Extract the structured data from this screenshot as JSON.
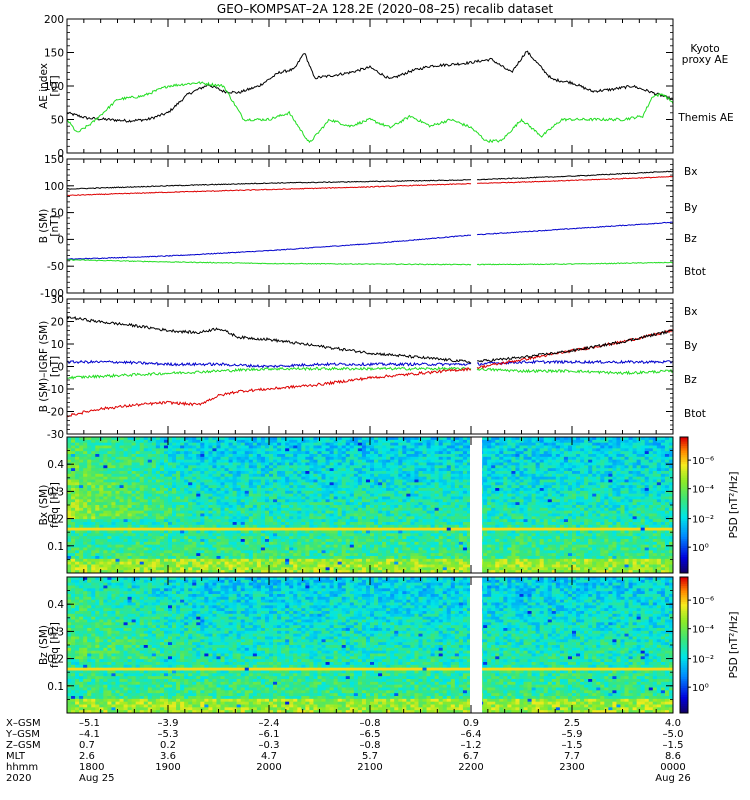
{
  "title": "GEO–KOMPSAT–2A 128.2E (2020–08–25) recalib dataset",
  "colors": {
    "black": "#000000",
    "blue": "#0000cc",
    "green": "#22dd22",
    "red": "#dd0000",
    "kyoto": "#22dd22"
  },
  "chart_data": [
    {
      "type": "line",
      "panel": "ae_index",
      "ylabel": "AE index\n[nT]",
      "ylim": [
        0,
        200
      ],
      "yticks": [
        0,
        50,
        100,
        150,
        200
      ],
      "x_range_hours": [
        18.0,
        24.0
      ],
      "series": [
        {
          "name": "Themis AE",
          "color": "#000000",
          "x": [
            18.0,
            18.2,
            18.4,
            18.6,
            18.8,
            19.0,
            19.2,
            19.4,
            19.55,
            19.7,
            19.9,
            20.1,
            20.25,
            20.35,
            20.45,
            20.6,
            20.8,
            21.0,
            21.2,
            21.4,
            21.6,
            21.8,
            22.0,
            22.2,
            22.4,
            22.55,
            22.8,
            23.0,
            23.2,
            23.4,
            23.6,
            23.8,
            24.0
          ],
          "values": [
            60,
            52,
            50,
            48,
            50,
            60,
            88,
            102,
            92,
            90,
            100,
            120,
            125,
            150,
            112,
            115,
            120,
            128,
            110,
            122,
            130,
            132,
            135,
            140,
            120,
            152,
            110,
            105,
            92,
            95,
            100,
            90,
            80
          ]
        },
        {
          "name": "Kyoto proxy AE",
          "color": "#22dd22",
          "x": [
            18.0,
            18.1,
            18.25,
            18.5,
            18.75,
            19.0,
            19.3,
            19.55,
            19.75,
            20.0,
            20.2,
            20.4,
            20.6,
            20.8,
            21.0,
            21.2,
            21.4,
            21.6,
            21.8,
            22.0,
            22.15,
            22.3,
            22.5,
            22.7,
            22.9,
            23.1,
            23.3,
            23.5,
            23.7,
            23.8,
            23.9,
            24.0
          ],
          "values": [
            50,
            30,
            45,
            80,
            85,
            100,
            105,
            100,
            50,
            50,
            60,
            15,
            50,
            40,
            50,
            38,
            55,
            40,
            50,
            38,
            18,
            18,
            50,
            25,
            50,
            50,
            50,
            50,
            55,
            85,
            88,
            75
          ]
        }
      ]
    },
    {
      "type": "line",
      "panel": "b_sm",
      "ylabel": "B (SM)\n[nT]",
      "ylim": [
        -100,
        150
      ],
      "yticks": [
        -100,
        -50,
        0,
        50,
        100,
        150
      ],
      "x_range_hours": [
        18.0,
        24.0
      ],
      "gap_hours": [
        22.0,
        22.06
      ],
      "series": [
        {
          "name": "Bx",
          "color": "#0000cc",
          "x": [
            18.0,
            19.0,
            20.0,
            21.0,
            22.0,
            23.0,
            24.0
          ],
          "values": [
            -37,
            -31,
            -21,
            -8,
            8,
            20,
            32
          ]
        },
        {
          "name": "By",
          "color": "#22dd22",
          "x": [
            18.0,
            19.0,
            20.0,
            21.0,
            22.0,
            23.0,
            24.0
          ],
          "values": [
            -38,
            -42,
            -45,
            -46,
            -47,
            -46,
            -43
          ]
        },
        {
          "name": "Bz",
          "color": "#dd0000",
          "x": [
            18.0,
            19.0,
            20.0,
            21.0,
            22.0,
            23.0,
            24.0
          ],
          "values": [
            82,
            88,
            93,
            98,
            104,
            110,
            117
          ]
        },
        {
          "name": "Btot",
          "color": "#000000",
          "x": [
            18.0,
            19.0,
            20.0,
            21.0,
            22.0,
            23.0,
            24.0
          ],
          "values": [
            94,
            100,
            105,
            108,
            111,
            118,
            127
          ]
        }
      ]
    },
    {
      "type": "line",
      "panel": "b_minus_igrf",
      "ylabel": "B (SM)–IGRF (SM)\n[nT]",
      "ylim": [
        -30,
        30
      ],
      "yticks": [
        -30,
        -20,
        -10,
        0,
        10,
        20,
        30
      ],
      "x_range_hours": [
        18.0,
        24.0
      ],
      "gap_hours": [
        22.0,
        22.06
      ],
      "series": [
        {
          "name": "Bx",
          "color": "#0000cc",
          "x": [
            18.0,
            18.5,
            19.0,
            19.5,
            20.0,
            20.5,
            21.0,
            21.5,
            22.0,
            22.5,
            23.0,
            23.5,
            24.0
          ],
          "values": [
            2,
            2,
            1,
            1,
            0,
            1,
            1,
            1,
            1,
            2,
            2,
            2,
            2
          ]
        },
        {
          "name": "By",
          "color": "#22dd22",
          "x": [
            18.0,
            18.5,
            19.0,
            19.5,
            20.0,
            20.5,
            21.0,
            21.5,
            22.0,
            22.5,
            23.0,
            23.5,
            24.0
          ],
          "values": [
            -5,
            -4,
            -3,
            -2,
            -1,
            -1,
            -1,
            -1,
            -1,
            -2,
            -2,
            -3,
            -2
          ]
        },
        {
          "name": "Bz",
          "color": "#dd0000",
          "x": [
            18.0,
            18.3,
            18.7,
            19.0,
            19.3,
            19.5,
            19.7,
            20.0,
            20.5,
            21.0,
            21.5,
            22.0,
            22.5,
            23.0,
            23.5,
            24.0
          ],
          "values": [
            -22,
            -19,
            -17,
            -16,
            -17,
            -13,
            -11,
            -10,
            -8,
            -5,
            -3,
            -1,
            3,
            7,
            11,
            16
          ]
        },
        {
          "name": "Btot",
          "color": "#000000",
          "x": [
            18.0,
            18.3,
            18.7,
            19.0,
            19.3,
            19.5,
            19.7,
            20.0,
            20.5,
            21.0,
            21.5,
            22.0,
            22.5,
            23.0,
            23.5,
            24.0
          ],
          "values": [
            22,
            20,
            18,
            16,
            15,
            17,
            13,
            12,
            9,
            6,
            4,
            2,
            4,
            7,
            11,
            16
          ]
        }
      ]
    },
    {
      "type": "heatmap",
      "panel": "bx_spectrogram",
      "ylabel": "Bx (SM)\nfreq [Hz]",
      "ylim": [
        0.0,
        0.5
      ],
      "yticks": [
        0.1,
        0.2,
        0.3,
        0.4
      ],
      "colorbar_label": "PSD [nT²/Hz]",
      "colorbar_ticks": [
        "10⁻⁶",
        "10⁻⁴",
        "10⁻²",
        "10⁰"
      ],
      "gap_hours": [
        22.0,
        22.06
      ],
      "notable_line_hz": 0.165
    },
    {
      "type": "heatmap",
      "panel": "bz_spectrogram",
      "ylabel": "Bz (SM)\nfreq [Hz]",
      "ylim": [
        0.0,
        0.5
      ],
      "yticks": [
        0.1,
        0.2,
        0.3,
        0.4
      ],
      "colorbar_label": "PSD [nT²/Hz]",
      "colorbar_ticks": [
        "10⁻⁶",
        "10⁻⁴",
        "10⁻²",
        "10⁰"
      ],
      "gap_hours": [
        22.0,
        22.06
      ],
      "notable_line_hz": 0.165
    }
  ],
  "legends": {
    "ae": [
      {
        "text": "Kyoto\nproxy AE",
        "color": "#22dd22"
      },
      {
        "text": "Themis AE",
        "color": "#000000"
      }
    ],
    "b": [
      {
        "text": "Bx",
        "color": "#0000cc"
      },
      {
        "text": "By",
        "color": "#22dd22"
      },
      {
        "text": "Bz",
        "color": "#dd0000"
      },
      {
        "text": "Btot",
        "color": "#000000"
      }
    ]
  },
  "x_axis_rows": {
    "labels": [
      "X–GSM",
      "Y–GSM",
      "Z–GSM",
      "MLT",
      "hhmm",
      "2020"
    ],
    "ticks": [
      {
        "hour": 18.0,
        "values": [
          "–5.1",
          "–4.1",
          "0.7",
          "2.6",
          "1800",
          "Aug 25"
        ]
      },
      {
        "hour": 19.0,
        "values": [
          "–3.9",
          "–5.3",
          "0.2",
          "3.6",
          "1900",
          ""
        ]
      },
      {
        "hour": 20.0,
        "values": [
          "–2.4",
          "–6.1",
          "–0.3",
          "4.7",
          "2000",
          ""
        ]
      },
      {
        "hour": 21.0,
        "values": [
          "–0.8",
          "–6.5",
          "–0.8",
          "5.7",
          "2100",
          ""
        ]
      },
      {
        "hour": 22.0,
        "values": [
          "0.9",
          "–6.4",
          "–1.2",
          "6.7",
          "2200",
          ""
        ]
      },
      {
        "hour": 23.0,
        "values": [
          "2.5",
          "–5.9",
          "–1.5",
          "7.7",
          "2300",
          ""
        ]
      },
      {
        "hour": 24.0,
        "values": [
          "4.0",
          "–5.0",
          "–1.5",
          "8.6",
          "0000",
          "Aug 26"
        ]
      }
    ]
  }
}
